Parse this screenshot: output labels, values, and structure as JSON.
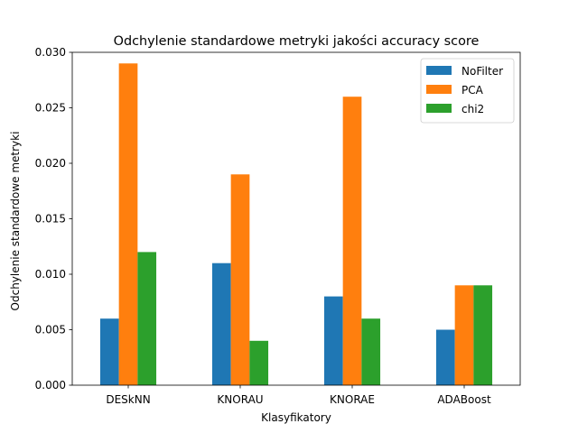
{
  "chart_data": {
    "type": "bar",
    "title": "Odchylenie standardowe metryki jakości accuracy score",
    "xlabel": "Klasyfikatory",
    "ylabel": "Odchylenie standardowe metryki",
    "categories": [
      "DESkNN",
      "KNORAU",
      "KNORAE",
      "ADABoost"
    ],
    "series": [
      {
        "name": "NoFilter",
        "color": "#1f77b4",
        "values": [
          0.006,
          0.011,
          0.008,
          0.005
        ]
      },
      {
        "name": "PCA",
        "color": "#ff7f0e",
        "values": [
          0.029,
          0.019,
          0.026,
          0.009
        ]
      },
      {
        "name": "chi2",
        "color": "#2ca02c",
        "values": [
          0.012,
          0.004,
          0.006,
          0.009
        ]
      }
    ],
    "ylim": [
      0,
      0.03
    ],
    "yticks": [
      "0.000",
      "0.005",
      "0.010",
      "0.015",
      "0.020",
      "0.025",
      "0.030"
    ],
    "grid": false,
    "legend": "top-right"
  }
}
